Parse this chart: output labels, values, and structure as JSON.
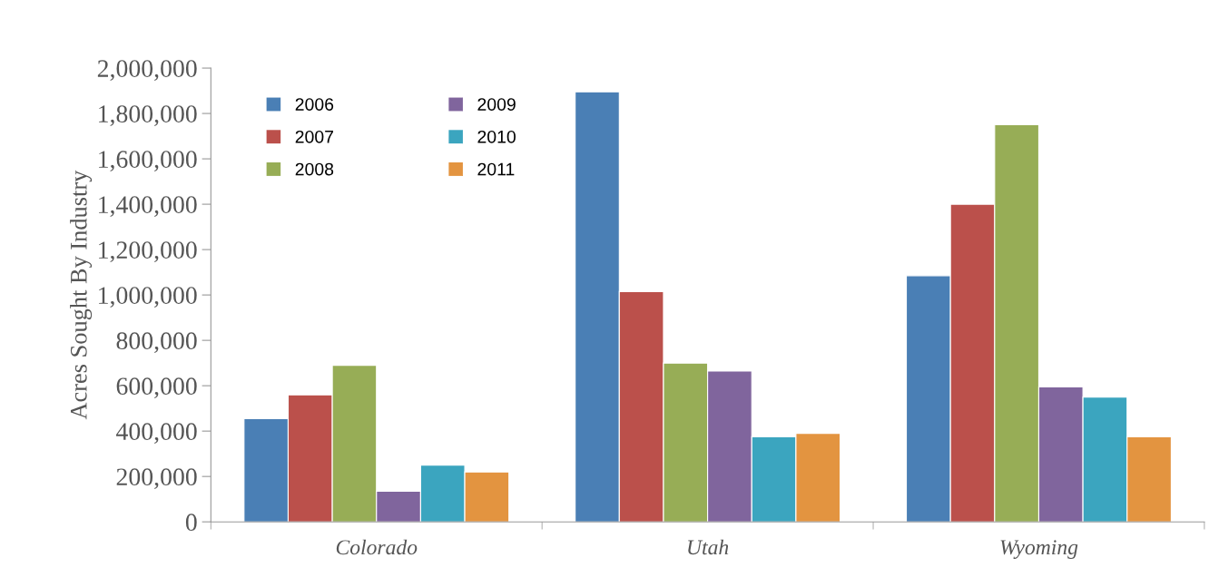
{
  "chart_data": {
    "type": "bar",
    "ylabel": "Acres Sought By Industry",
    "categories": [
      "Colorado",
      "Utah",
      "Wyoming"
    ],
    "series": [
      {
        "name": "2006",
        "color": "#4a7fb5",
        "values": [
          455000,
          1895000,
          1085000
        ]
      },
      {
        "name": "2007",
        "color": "#bb504b",
        "values": [
          560000,
          1015000,
          1400000
        ]
      },
      {
        "name": "2008",
        "color": "#97ad56",
        "values": [
          690000,
          700000,
          1750000
        ]
      },
      {
        "name": "2009",
        "color": "#80659d",
        "values": [
          135000,
          665000,
          595000
        ]
      },
      {
        "name": "2010",
        "color": "#3ba5bf",
        "values": [
          250000,
          375000,
          550000
        ]
      },
      {
        "name": "2011",
        "color": "#e39440",
        "values": [
          220000,
          390000,
          375000
        ]
      }
    ],
    "ylim": [
      0,
      2000000
    ],
    "yticks": [
      0,
      {
        "value": 200000,
        "label": "200,000"
      },
      {
        "value": 400000,
        "label": "400,000"
      },
      {
        "value": 600000,
        "label": "600,000"
      },
      {
        "value": 800000,
        "label": "800,000"
      },
      {
        "value": 1000000,
        "label": "1,000,000"
      },
      {
        "value": 1200000,
        "label": "1,200,000"
      },
      {
        "value": 1400000,
        "label": "1,400,000"
      },
      {
        "value": 1600000,
        "label": "1,600,000"
      },
      {
        "value": 1800000,
        "label": "1,800,000"
      },
      {
        "value": 2000000,
        "label": "2,000,000"
      }
    ],
    "grid": false,
    "legend": "top left"
  }
}
